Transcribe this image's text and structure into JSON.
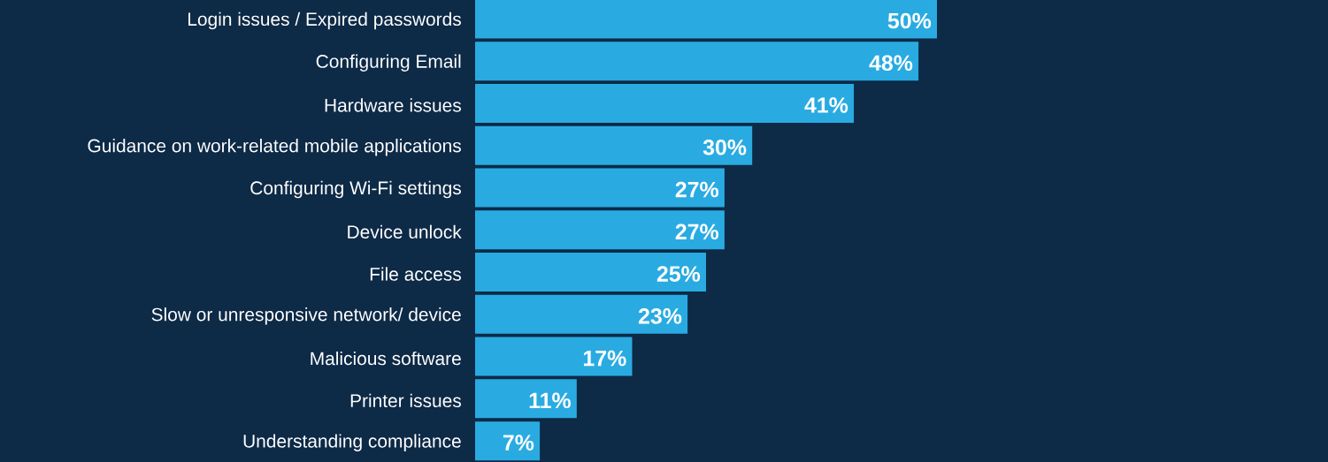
{
  "chart_data": {
    "type": "bar",
    "orientation": "horizontal",
    "categories": [
      "Login issues / Expired passwords",
      "Configuring Email",
      "Hardware issues",
      "Guidance on work-related mobile applications",
      "Configuring Wi-Fi settings",
      "Device unlock",
      "File access",
      "Slow or unresponsive network/ device",
      "Malicious software",
      "Printer issues",
      "Understanding compliance"
    ],
    "values": [
      50,
      48,
      41,
      30,
      27,
      27,
      25,
      23,
      17,
      11,
      7
    ],
    "value_labels": [
      "50%",
      "48%",
      "41%",
      "30%",
      "27%",
      "27%",
      "25%",
      "23%",
      "17%",
      "11%",
      "7%"
    ],
    "color": "#29abe2"
  }
}
